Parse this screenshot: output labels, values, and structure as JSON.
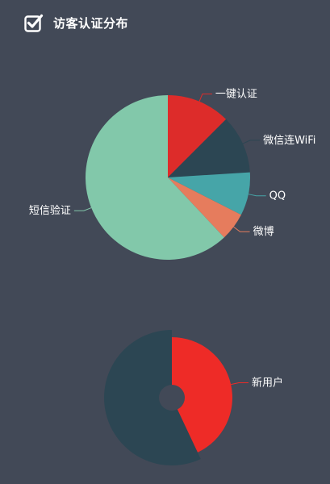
{
  "header": {
    "title": "访客认证分布"
  },
  "chart_data": [
    {
      "type": "pie",
      "categories": [
        "一键认证",
        "微信连WiFi",
        "QQ",
        "微博",
        "短信验证"
      ],
      "values": [
        12.5,
        11.5,
        8.5,
        5.5,
        62
      ],
      "colors": [
        "#dd2c2a",
        "#2c4653",
        "#46a5a8",
        "#e67c5d",
        "#82c8aa"
      ]
    },
    {
      "type": "pie",
      "categories": [
        "新用户",
        ""
      ],
      "values": [
        43,
        57
      ],
      "colors": [
        "#ee2b27",
        "#2c4653"
      ]
    }
  ]
}
